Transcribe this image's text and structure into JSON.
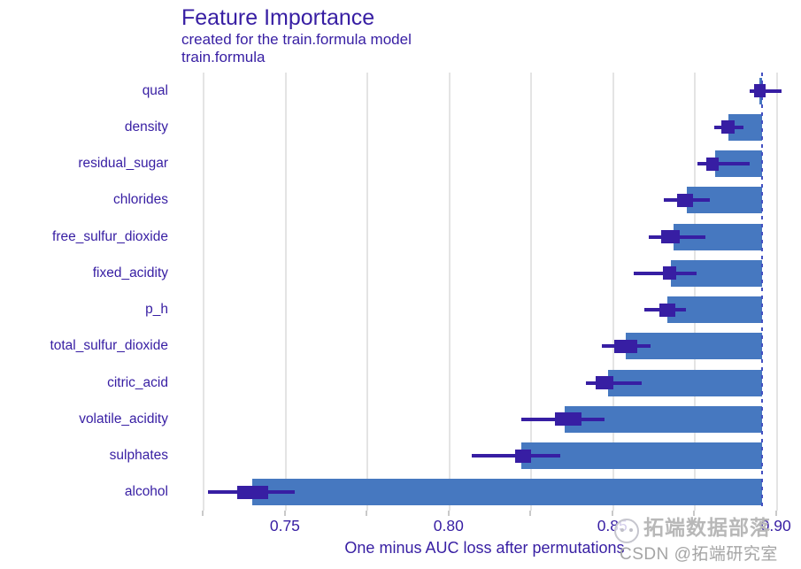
{
  "header": {
    "title": "Feature Importance",
    "subtitle": "created for the train.formula model",
    "model_label": "train.formula"
  },
  "colors": {
    "accent_text": "#371ea3",
    "bar_fill": "#4678c0",
    "boxplot_fill": "#371ea3",
    "gridline": "#e4e4e4",
    "tick_mark": "#c9c9c9",
    "baseline_dash": "#4450c2",
    "watermark_text": "#b8b8b8",
    "csdn_text": "#a5a5a5"
  },
  "watermark": {
    "logo_icon": "cartoon-face-logo",
    "brand": "拓端数据部落",
    "csdn": "CSDN @拓端研究室"
  },
  "chart_data": {
    "type": "bar",
    "subtype": "horizontal-bars-with-boxplots",
    "title": "Feature Importance",
    "subtitle": "created for the train.formula model",
    "model": "train.formula",
    "xlabel": "One minus AUC loss after permutations",
    "ylabel": "",
    "grid": true,
    "legend_position": "none",
    "xlim": [
      0.7184,
      0.9036
    ],
    "xticks": [
      0.75,
      0.8,
      0.85,
      0.9
    ],
    "xtick_labels": [
      "0.75",
      "0.80",
      "0.85",
      "0.90"
    ],
    "gridlines": [
      0.725,
      0.75,
      0.775,
      0.8,
      0.825,
      0.85,
      0.875,
      0.9
    ],
    "baseline_full_model": 0.8957,
    "bar_meaning": "bars span from mean permutation loss to full-model baseline (dashed line)",
    "categories": [
      "qual",
      "density",
      "residual_sugar",
      "chlorides",
      "free_sulfur_dioxide",
      "fixed_acidity",
      "p_h",
      "total_sulfur_dioxide",
      "citric_acid",
      "volatile_acidity",
      "sulphates",
      "alcohol"
    ],
    "series": [
      {
        "name": "qual",
        "mean": 0.8949,
        "q1": 0.8932,
        "q3": 0.8968,
        "whisker_low": 0.8921,
        "whisker_high": 0.9016
      },
      {
        "name": "density",
        "mean": 0.8854,
        "q1": 0.8832,
        "q3": 0.8873,
        "whisker_low": 0.8811,
        "whisker_high": 0.89
      },
      {
        "name": "residual_sugar",
        "mean": 0.8814,
        "q1": 0.8786,
        "q3": 0.8824,
        "whisker_low": 0.876,
        "whisker_high": 0.8919
      },
      {
        "name": "chlorides",
        "mean": 0.8727,
        "q1": 0.8697,
        "q3": 0.8746,
        "whisker_low": 0.8657,
        "whisker_high": 0.8797
      },
      {
        "name": "free_sulfur_dioxide",
        "mean": 0.8686,
        "q1": 0.8649,
        "q3": 0.8705,
        "whisker_low": 0.8611,
        "whisker_high": 0.8784
      },
      {
        "name": "fixed_acidity",
        "mean": 0.8678,
        "q1": 0.8654,
        "q3": 0.8695,
        "whisker_low": 0.8565,
        "whisker_high": 0.8757
      },
      {
        "name": "p_h",
        "mean": 0.8668,
        "q1": 0.8643,
        "q3": 0.8692,
        "whisker_low": 0.8597,
        "whisker_high": 0.8724
      },
      {
        "name": "total_sulfur_dioxide",
        "mean": 0.8541,
        "q1": 0.8505,
        "q3": 0.8576,
        "whisker_low": 0.8468,
        "whisker_high": 0.8616
      },
      {
        "name": "citric_acid",
        "mean": 0.8486,
        "q1": 0.8449,
        "q3": 0.8503,
        "whisker_low": 0.8419,
        "whisker_high": 0.8589
      },
      {
        "name": "volatile_acidity",
        "mean": 0.8354,
        "q1": 0.8324,
        "q3": 0.8405,
        "whisker_low": 0.8222,
        "whisker_high": 0.8476
      },
      {
        "name": "sulphates",
        "mean": 0.8222,
        "q1": 0.8203,
        "q3": 0.8251,
        "whisker_low": 0.807,
        "whisker_high": 0.834
      },
      {
        "name": "alcohol",
        "mean": 0.74,
        "q1": 0.7354,
        "q3": 0.7449,
        "whisker_low": 0.7265,
        "whisker_high": 0.753
      }
    ]
  }
}
